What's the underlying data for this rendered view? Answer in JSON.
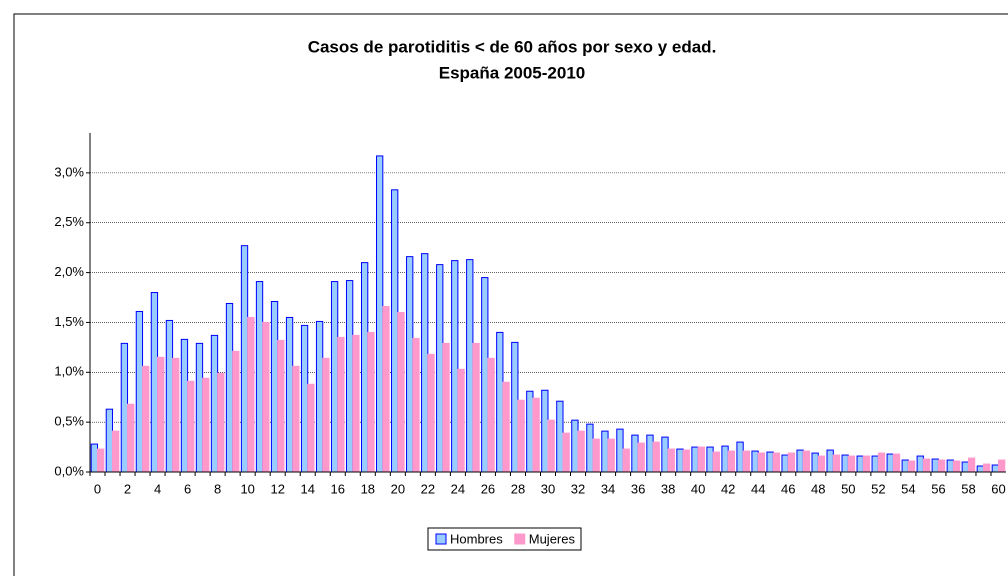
{
  "chart_data": {
    "type": "bar",
    "title": [
      "Casos de parotiditis < de 60 años por sexo y edad.",
      "España 2005-2010"
    ],
    "categories": [
      "0",
      null,
      "2",
      null,
      "4",
      null,
      "6",
      null,
      "8",
      null,
      "10",
      null,
      "12",
      null,
      "14",
      null,
      "16",
      null,
      "18",
      null,
      "20",
      null,
      "22",
      null,
      "24",
      null,
      "26",
      null,
      "28",
      null,
      "30",
      null,
      "32",
      null,
      "34",
      null,
      "36",
      null,
      "38",
      null,
      "40",
      null,
      "42",
      null,
      "44",
      null,
      "46",
      null,
      "48",
      null,
      "50",
      null,
      "52",
      null,
      "54",
      null,
      "56",
      null,
      "58",
      null,
      "60"
    ],
    "series": [
      {
        "name": "Hombres",
        "color": "#99ccff",
        "stroke": "#0000ff",
        "values": [
          0.28,
          0.63,
          1.29,
          1.61,
          1.8,
          1.52,
          1.33,
          1.29,
          1.37,
          1.69,
          2.27,
          1.91,
          1.71,
          1.55,
          1.47,
          1.51,
          1.91,
          1.92,
          2.1,
          3.17,
          2.83,
          2.16,
          2.19,
          2.08,
          2.12,
          2.13,
          1.95,
          1.4,
          1.3,
          0.81,
          0.82,
          0.71,
          0.52,
          0.48,
          0.41,
          0.43,
          0.37,
          0.37,
          0.35,
          0.23,
          0.25,
          0.25,
          0.26,
          0.3,
          0.21,
          0.2,
          0.17,
          0.22,
          0.19,
          0.22,
          0.17,
          0.16,
          0.16,
          0.18,
          0.12,
          0.16,
          0.13,
          0.12,
          0.1,
          0.06,
          0.07
        ]
      },
      {
        "name": "Mujeres",
        "color": "#ff99cc",
        "stroke": "#ff99cc",
        "values": [
          0.23,
          0.41,
          0.68,
          1.06,
          1.15,
          1.14,
          0.91,
          0.94,
          0.99,
          1.21,
          1.55,
          1.5,
          1.32,
          1.06,
          0.88,
          1.14,
          1.35,
          1.37,
          1.4,
          1.66,
          1.6,
          1.34,
          1.18,
          1.29,
          1.03,
          1.29,
          1.14,
          0.9,
          0.72,
          0.74,
          0.52,
          0.39,
          0.41,
          0.33,
          0.33,
          0.23,
          0.29,
          0.3,
          0.23,
          0.22,
          0.25,
          0.2,
          0.21,
          0.21,
          0.19,
          0.19,
          0.19,
          0.21,
          0.16,
          0.17,
          0.16,
          0.16,
          0.19,
          0.18,
          0.11,
          0.13,
          0.12,
          0.11,
          0.14,
          0.08,
          0.12
        ]
      }
    ],
    "ylim": [
      0,
      3.4
    ],
    "yticks": [
      {
        "value": 0,
        "label": "0,0%"
      },
      {
        "value": 0.5,
        "label": "0,5%"
      },
      {
        "value": 1,
        "label": "1,0%"
      },
      {
        "value": 1.5,
        "label": "1,5%"
      },
      {
        "value": 2,
        "label": "2,0%"
      },
      {
        "value": 2.5,
        "label": "2,5%"
      },
      {
        "value": 3,
        "label": "3,0%"
      }
    ],
    "grid": true,
    "legend": "bottom"
  }
}
